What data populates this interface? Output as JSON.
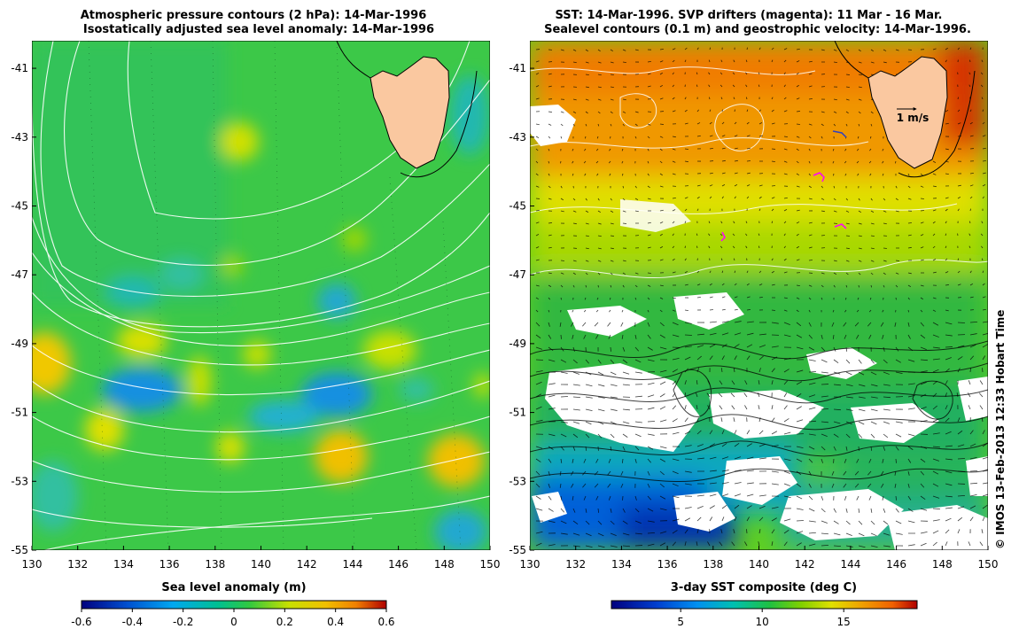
{
  "colors": {
    "land": "#fac8a0",
    "contour": "#ffffff",
    "coast": "#000000",
    "drifter": "#ff00ff",
    "sla_palette": [
      "#00007f",
      "#0050d0",
      "#00a8f0",
      "#00c8a0",
      "#20c840",
      "#60d020",
      "#c8e000",
      "#f0c000",
      "#f08000",
      "#c00000"
    ],
    "sst_palette": [
      "#00007f",
      "#0040d0",
      "#0090f0",
      "#00c0c0",
      "#20c040",
      "#80d000",
      "#e0e000",
      "#f0a000",
      "#f06000",
      "#c00000"
    ]
  },
  "left_panel": {
    "title_line1": "Atmospheric pressure contours (2 hPa): 14-Mar-1996",
    "title_line2": "Isostatically adjusted sea level anomaly: 14-Mar-1996",
    "colorbar_title": "Sea level anomaly (m)",
    "colorbar_ticks": [
      "-0.6",
      "-0.4",
      "-0.2",
      "0",
      "0.2",
      "0.4",
      "0.6"
    ]
  },
  "right_panel": {
    "title_line1": "SST: 14-Mar-1996. SVP drifters (magenta): 11 Mar - 16 Mar.",
    "title_line2": "Sealevel contours (0.1 m) and geostrophic velocity: 14-Mar-1996.",
    "colorbar_title": "3-day SST composite (deg C)",
    "colorbar_ticks": [
      "5",
      "10",
      "15"
    ],
    "velocity_scale": "1 m/s"
  },
  "axes": {
    "lon_labels": [
      "130",
      "132",
      "134",
      "136",
      "138",
      "140",
      "142",
      "144",
      "146",
      "148",
      "150"
    ],
    "lat_labels": [
      "-41",
      "-43",
      "-45",
      "-47",
      "-49",
      "-51",
      "-53",
      "-55"
    ],
    "lon_range": [
      130,
      150
    ],
    "lat_range": [
      -55,
      -40.2
    ]
  },
  "credit": "© IMOS 13-Feb-2013 12:33 Hobart Time"
}
